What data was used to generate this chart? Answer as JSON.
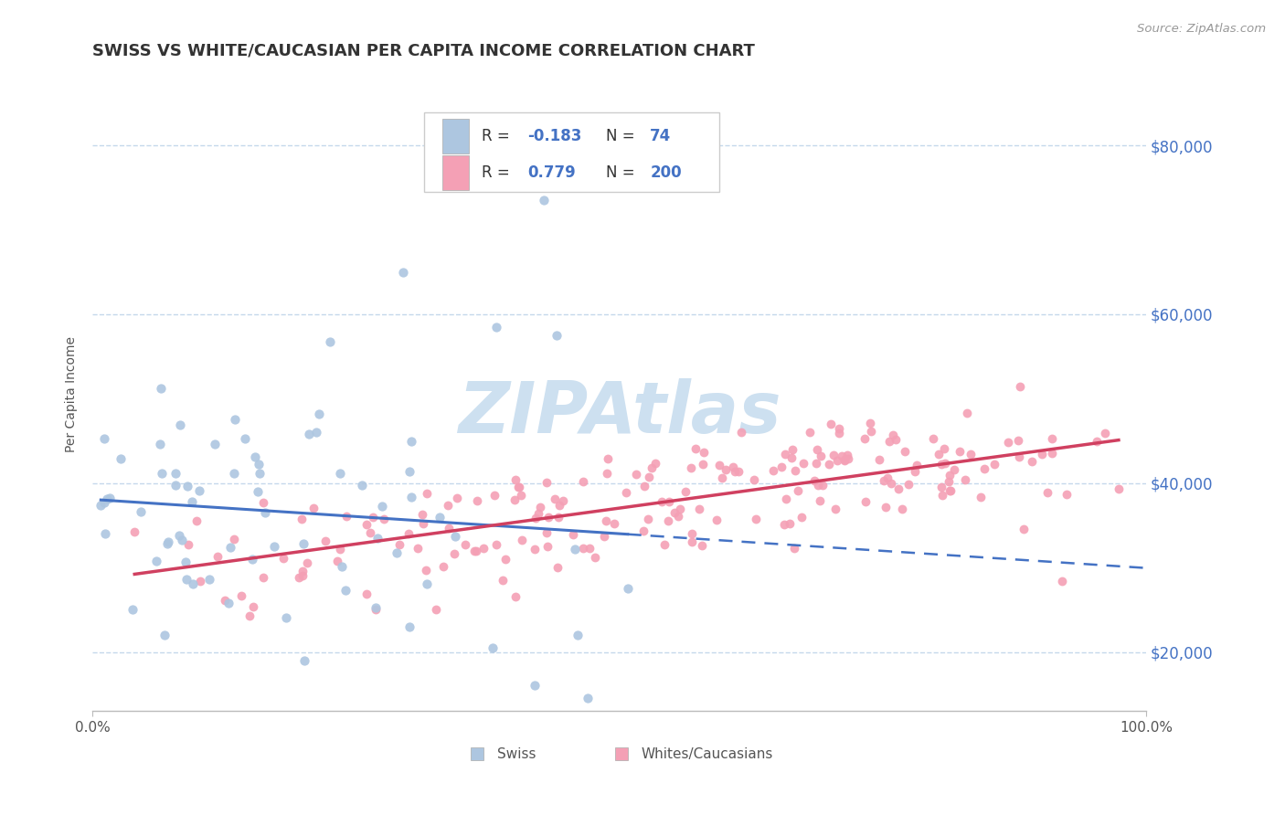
{
  "title": "SWISS VS WHITE/CAUCASIAN PER CAPITA INCOME CORRELATION CHART",
  "source_text": "Source: ZipAtlas.com",
  "ylabel": "Per Capita Income",
  "xlim": [
    0,
    1
  ],
  "ylim": [
    13000,
    88000
  ],
  "xtick_labels": [
    "0.0%",
    "100.0%"
  ],
  "ytick_values": [
    20000,
    40000,
    60000,
    80000
  ],
  "swiss_color": "#adc6e0",
  "caucasian_color": "#f4a0b5",
  "swiss_line_color": "#4472c4",
  "caucasian_line_color": "#d04060",
  "background_color": "#ffffff",
  "grid_color": "#c5d8eb",
  "watermark": "ZIPAtlas",
  "watermark_color": "#cde0f0",
  "title_fontsize": 13,
  "axis_label_fontsize": 10,
  "tick_fontsize": 11,
  "swiss_R": -0.183,
  "swiss_N": 74,
  "caucasian_R": 0.779,
  "caucasian_N": 200,
  "right_tick_color": "#4472c4"
}
